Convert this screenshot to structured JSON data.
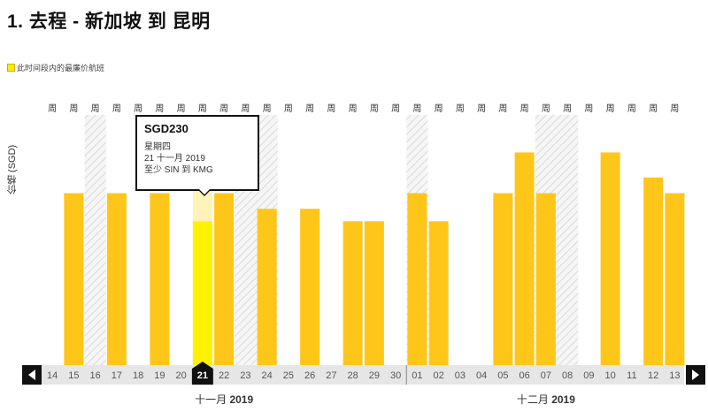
{
  "header": {
    "title": "1. 去程 - 新加坡 到 昆明"
  },
  "legend": {
    "label": "此时间段内的最廉价航班"
  },
  "colors": {
    "bar": "#ffc61a",
    "selected": "#fff200",
    "axis": "#e6e6e6",
    "ink": "#111111"
  },
  "tooltip": {
    "price": "SGD230",
    "weekday": "星期四",
    "date": "21 十一月 2019",
    "route": "至少 SIN 到 KMG"
  },
  "chart_data": {
    "type": "bar",
    "ylabel": "价格 (SGD)",
    "weekday_label": "周",
    "categories": [
      "14",
      "15",
      "16",
      "17",
      "18",
      "19",
      "20",
      "21",
      "22",
      "23",
      "24",
      "25",
      "26",
      "27",
      "28",
      "29",
      "30",
      "01",
      "02",
      "03",
      "04",
      "05",
      "06",
      "07",
      "08",
      "09",
      "10",
      "11",
      "12",
      "13"
    ],
    "values": [
      null,
      275,
      null,
      275,
      null,
      275,
      null,
      230,
      275,
      null,
      250,
      null,
      250,
      null,
      230,
      230,
      null,
      275,
      230,
      null,
      null,
      275,
      340,
      275,
      null,
      null,
      340,
      null,
      300,
      275
    ],
    "selected_index": 7,
    "shaded_indices": [
      2,
      9,
      10,
      17,
      23,
      24
    ],
    "months": [
      {
        "name": "十一月",
        "year": "2019",
        "center_index": 8
      },
      {
        "name": "十二月",
        "year": "2019",
        "center_index": 23
      }
    ],
    "ylim": [
      0,
      400
    ],
    "grid": false,
    "legend_position": "top-left"
  },
  "nav": {
    "prev_icon": "arrow-left-icon",
    "next_icon": "arrow-right-icon"
  }
}
